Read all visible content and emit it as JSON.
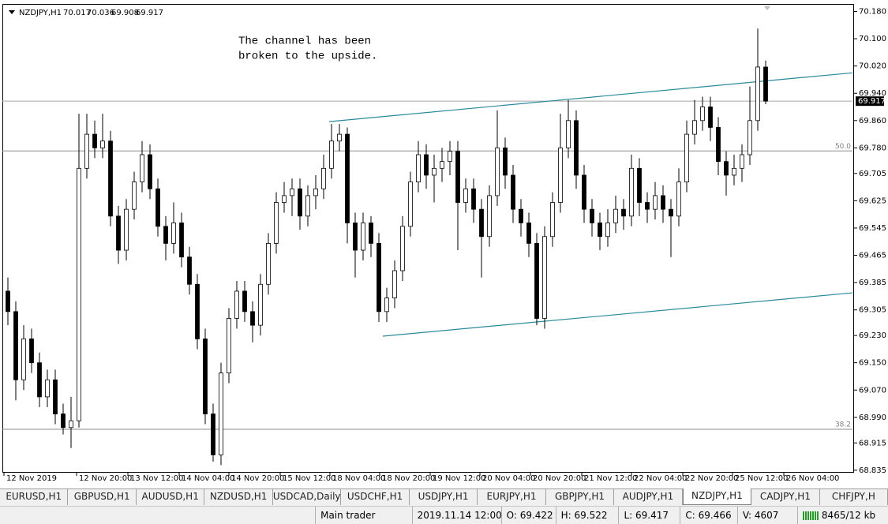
{
  "chart_data": {
    "type": "candlestick",
    "title": "NZDJPY,H1",
    "annotation": [
      "The channel has been",
      "broken to the upside."
    ],
    "ohlc": [
      [
        69.36,
        69.4,
        69.26,
        69.3
      ],
      [
        69.3,
        69.33,
        69.04,
        69.1
      ],
      [
        69.1,
        69.26,
        69.07,
        69.22
      ],
      [
        69.22,
        69.25,
        69.12,
        69.15
      ],
      [
        69.15,
        69.18,
        69.02,
        69.05
      ],
      [
        69.05,
        69.13,
        69.02,
        69.1
      ],
      [
        69.1,
        69.13,
        68.97,
        69.0
      ],
      [
        69.0,
        69.03,
        68.94,
        68.96
      ],
      [
        68.96,
        69.05,
        68.9,
        68.98
      ],
      [
        68.98,
        69.88,
        68.96,
        69.72
      ],
      [
        69.72,
        69.88,
        69.69,
        69.82
      ],
      [
        69.82,
        69.86,
        69.75,
        69.78
      ],
      [
        69.78,
        69.88,
        69.75,
        69.8
      ],
      [
        69.8,
        69.83,
        69.55,
        69.58
      ],
      [
        69.58,
        69.61,
        69.44,
        69.48
      ],
      [
        69.48,
        69.63,
        69.45,
        69.6
      ],
      [
        69.6,
        69.71,
        69.57,
        69.68
      ],
      [
        69.68,
        69.8,
        69.65,
        69.76
      ],
      [
        69.76,
        69.79,
        69.63,
        69.66
      ],
      [
        69.66,
        69.69,
        69.52,
        69.55
      ],
      [
        69.55,
        69.58,
        69.45,
        69.5
      ],
      [
        69.5,
        69.62,
        69.47,
        69.56
      ],
      [
        69.56,
        69.59,
        69.43,
        69.46
      ],
      [
        69.46,
        69.49,
        69.35,
        69.38
      ],
      [
        69.38,
        69.41,
        69.19,
        69.22
      ],
      [
        69.22,
        69.25,
        68.97,
        69.0
      ],
      [
        69.0,
        69.03,
        68.86,
        68.88
      ],
      [
        68.88,
        69.15,
        68.85,
        69.12
      ],
      [
        69.12,
        69.31,
        69.09,
        69.28
      ],
      [
        69.28,
        69.39,
        69.25,
        69.36
      ],
      [
        69.36,
        69.39,
        69.27,
        69.3
      ],
      [
        69.3,
        69.33,
        69.21,
        69.26
      ],
      [
        69.26,
        69.41,
        69.23,
        69.38
      ],
      [
        69.38,
        69.53,
        69.35,
        69.5
      ],
      [
        69.5,
        69.65,
        69.47,
        69.62
      ],
      [
        69.62,
        69.68,
        69.59,
        69.64
      ],
      [
        69.64,
        69.69,
        69.58,
        69.66
      ],
      [
        69.66,
        69.69,
        69.54,
        69.58
      ],
      [
        69.58,
        69.67,
        69.55,
        69.64
      ],
      [
        69.64,
        69.7,
        69.6,
        69.66
      ],
      [
        69.66,
        69.76,
        69.63,
        69.72
      ],
      [
        69.72,
        69.85,
        69.69,
        69.8
      ],
      [
        69.8,
        69.85,
        69.77,
        69.82
      ],
      [
        69.82,
        69.84,
        69.5,
        69.56
      ],
      [
        69.56,
        69.59,
        69.4,
        69.48
      ],
      [
        69.48,
        69.59,
        69.45,
        69.56
      ],
      [
        69.56,
        69.58,
        69.46,
        69.5
      ],
      [
        69.5,
        69.53,
        69.27,
        69.3
      ],
      [
        69.3,
        69.37,
        69.27,
        69.34
      ],
      [
        69.34,
        69.45,
        69.31,
        69.42
      ],
      [
        69.42,
        69.58,
        69.39,
        69.55
      ],
      [
        69.55,
        69.71,
        69.52,
        69.68
      ],
      [
        69.68,
        69.8,
        69.65,
        69.76
      ],
      [
        69.76,
        69.79,
        69.66,
        69.7
      ],
      [
        69.7,
        69.76,
        69.62,
        69.72
      ],
      [
        69.72,
        69.78,
        69.68,
        69.74
      ],
      [
        69.74,
        69.8,
        69.7,
        69.77
      ],
      [
        69.77,
        69.8,
        69.48,
        69.62
      ],
      [
        69.62,
        69.69,
        69.59,
        69.66
      ],
      [
        69.66,
        69.69,
        69.56,
        69.6
      ],
      [
        69.6,
        69.63,
        69.4,
        69.52
      ],
      [
        69.52,
        69.67,
        69.49,
        69.64
      ],
      [
        69.64,
        69.89,
        69.61,
        69.78
      ],
      [
        69.78,
        69.81,
        69.66,
        69.7
      ],
      [
        69.7,
        69.73,
        69.56,
        69.6
      ],
      [
        69.6,
        69.63,
        69.52,
        69.56
      ],
      [
        69.56,
        69.59,
        69.46,
        69.5
      ],
      [
        69.5,
        69.53,
        69.26,
        69.28
      ],
      [
        69.28,
        69.55,
        69.25,
        69.52
      ],
      [
        69.52,
        69.65,
        69.49,
        69.62
      ],
      [
        69.62,
        69.88,
        69.59,
        69.78
      ],
      [
        69.78,
        69.92,
        69.75,
        69.86
      ],
      [
        69.86,
        69.89,
        69.66,
        69.7
      ],
      [
        69.7,
        69.73,
        69.56,
        69.6
      ],
      [
        69.6,
        69.63,
        69.52,
        69.56
      ],
      [
        69.56,
        69.59,
        69.48,
        69.52
      ],
      [
        69.52,
        69.6,
        69.49,
        69.56
      ],
      [
        69.56,
        69.64,
        69.53,
        69.6
      ],
      [
        69.6,
        69.63,
        69.54,
        69.58
      ],
      [
        69.58,
        69.76,
        69.55,
        69.72
      ],
      [
        69.72,
        69.75,
        69.58,
        69.62
      ],
      [
        69.62,
        69.65,
        69.56,
        69.6
      ],
      [
        69.6,
        69.68,
        69.57,
        69.64
      ],
      [
        69.64,
        69.67,
        69.56,
        69.6
      ],
      [
        69.6,
        69.63,
        69.46,
        69.58
      ],
      [
        69.58,
        69.72,
        69.55,
        69.68
      ],
      [
        69.68,
        69.86,
        69.65,
        69.82
      ],
      [
        69.82,
        69.92,
        69.79,
        69.86
      ],
      [
        69.86,
        69.93,
        69.83,
        69.9
      ],
      [
        69.9,
        69.93,
        69.8,
        69.84
      ],
      [
        69.84,
        69.87,
        69.7,
        69.74
      ],
      [
        69.74,
        69.77,
        69.64,
        69.7
      ],
      [
        69.7,
        69.76,
        69.67,
        69.72
      ],
      [
        69.72,
        69.79,
        69.68,
        69.76
      ],
      [
        69.76,
        69.96,
        69.73,
        69.86
      ],
      [
        69.86,
        70.13,
        69.83,
        70.017
      ],
      [
        70.017,
        70.036,
        69.908,
        69.917
      ]
    ],
    "xlim": [
      -0.7,
      107
    ],
    "xticks": [
      {
        "value": -0.5,
        "label": "12 Nov 2019"
      },
      {
        "value": 8.7,
        "label": "12 Nov 20:00"
      },
      {
        "value": 15.2,
        "label": "13 Nov 12:00"
      },
      {
        "value": 21.7,
        "label": "14 Nov 04:00"
      },
      {
        "value": 28,
        "label": "14 Nov 20:00"
      },
      {
        "value": 34.5,
        "label": "15 Nov 12:00"
      },
      {
        "value": 40.8,
        "label": "18 Nov 04:00"
      },
      {
        "value": 47.1,
        "label": "18 Nov 20:00"
      },
      {
        "value": 53.5,
        "label": "19 Nov 12:00"
      },
      {
        "value": 59.8,
        "label": "20 Nov 04:00"
      },
      {
        "value": 66.2,
        "label": "20 Nov 20:00"
      },
      {
        "value": 72.7,
        "label": "21 Nov 12:00"
      },
      {
        "value": 79,
        "label": "22 Nov 04:00"
      },
      {
        "value": 85.5,
        "label": "22 Nov 20:00"
      },
      {
        "value": 91.8,
        "label": "25 Nov 12:00"
      },
      {
        "value": 98.3,
        "label": "26 Nov 04:00"
      }
    ],
    "ylim": [
      68.83,
      70.195
    ],
    "yticks": [
      {
        "value": 70.18,
        "label": "70.180"
      },
      {
        "value": 70.1,
        "label": "70.100"
      },
      {
        "value": 70.02,
        "label": "70.020"
      },
      {
        "value": 69.94,
        "label": "69.940"
      },
      {
        "value": 69.86,
        "label": "69.860"
      },
      {
        "value": 69.78,
        "label": "69.780"
      },
      69.705,
      69.625,
      69.545,
      69.465,
      69.385,
      69.305,
      {
        "value": 69.23,
        "label": "69.230"
      },
      {
        "value": 69.15,
        "label": "69.150"
      },
      {
        "value": 69.07,
        "label": "69.070"
      },
      {
        "value": 68.99,
        "label": "68.990"
      },
      68.915,
      68.835
    ],
    "bull_color": "#ffffff",
    "bear_color": "#000000",
    "channels": {
      "color": "#2a8a9a",
      "lines": [
        {
          "x": [
            40.7,
            107
          ],
          "y": [
            69.857,
            70.0
          ]
        },
        {
          "x": [
            47.5,
            107
          ],
          "y": [
            69.228,
            69.355
          ]
        }
      ]
    },
    "levels": {
      "color": "#8c8c8c",
      "lines": [
        {
          "value": 69.771,
          "label": "50.0"
        },
        {
          "value": 68.955,
          "label": "38.2"
        }
      ]
    }
  },
  "tabs": {
    "items": [
      "EURUSD,H1",
      "GBPUSD,H1",
      "AUDUSD,H1",
      "NZDUSD,H1",
      "USDCAD,Daily",
      "USDCHF,H1",
      "USDJPY,H1",
      "EURJPY,H1",
      "GBPJPY,H1",
      "AUDJPY,H1",
      "NZDJPY,H1",
      "CADJPY,H1",
      "CHFJPY,H"
    ],
    "active": 10
  },
  "status_bar": [
    "Main trader",
    "2019.11.14 12:00",
    "O: 69.422",
    "H: 69.522",
    "L: 69.417",
    "C: 69.466",
    "V: 4607",
    "8465/12 kb"
  ]
}
